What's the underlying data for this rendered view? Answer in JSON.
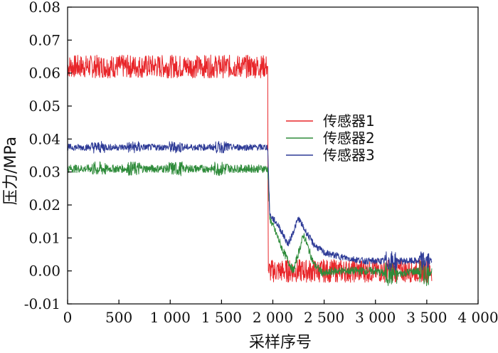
{
  "chart_data": {
    "type": "line",
    "xlabel": "采样序号",
    "ylabel": "压力/MPa",
    "xlim": [
      0,
      4000
    ],
    "ylim": [
      -0.01,
      0.08
    ],
    "x_ticks": [
      0,
      500,
      1000,
      1500,
      2000,
      2500,
      3000,
      3500,
      4000
    ],
    "x_tick_labels": [
      "0",
      "500",
      "1 000",
      "1 500",
      "2 000",
      "2 500",
      "3 000",
      "3 500",
      "4 000"
    ],
    "y_ticks": [
      -0.01,
      0.0,
      0.01,
      0.02,
      0.03,
      0.04,
      0.05,
      0.06,
      0.07,
      0.08
    ],
    "y_tick_labels": [
      "-0.01",
      "0.00",
      "0.01",
      "0.02",
      "0.03",
      "0.04",
      "0.05",
      "0.06",
      "0.07",
      "0.08"
    ],
    "grid": false,
    "legend_position": "center-right",
    "series": [
      {
        "name": "传感器1",
        "color": "#e8262a",
        "x": [
          0,
          400,
          800,
          1200,
          1600,
          1950,
          1955,
          2000,
          2500,
          3000,
          3500,
          3550
        ],
        "y": [
          0.062,
          0.062,
          0.062,
          0.062,
          0.062,
          0.062,
          0.0,
          0.0,
          0.0,
          0.0,
          0.0,
          0.0
        ],
        "noise": 0.0035
      },
      {
        "name": "传感器2",
        "color": "#2e8b3a",
        "x": [
          0,
          500,
          1000,
          1500,
          1950,
          1970,
          2050,
          2100,
          2200,
          2300,
          2400,
          2500,
          2600,
          3000,
          3100,
          3200,
          3400,
          3500,
          3550
        ],
        "y": [
          0.031,
          0.031,
          0.031,
          0.031,
          0.031,
          0.016,
          0.01,
          0.006,
          0.0,
          0.011,
          0.002,
          -0.001,
          0.0,
          0.0,
          -0.001,
          -0.001,
          0.0,
          -0.001,
          0.0
        ],
        "noise": 0.0012
      },
      {
        "name": "传感器3",
        "color": "#2d3a96",
        "x": [
          0,
          500,
          1000,
          1500,
          1950,
          1970,
          2050,
          2150,
          2250,
          2300,
          2400,
          2500,
          2700,
          2900,
          3100,
          3300,
          3500,
          3550
        ],
        "y": [
          0.0375,
          0.0375,
          0.0375,
          0.0375,
          0.0375,
          0.017,
          0.014,
          0.008,
          0.016,
          0.013,
          0.008,
          0.0055,
          0.004,
          0.003,
          0.003,
          0.003,
          0.003,
          0.003
        ],
        "noise": 0.001
      }
    ]
  }
}
